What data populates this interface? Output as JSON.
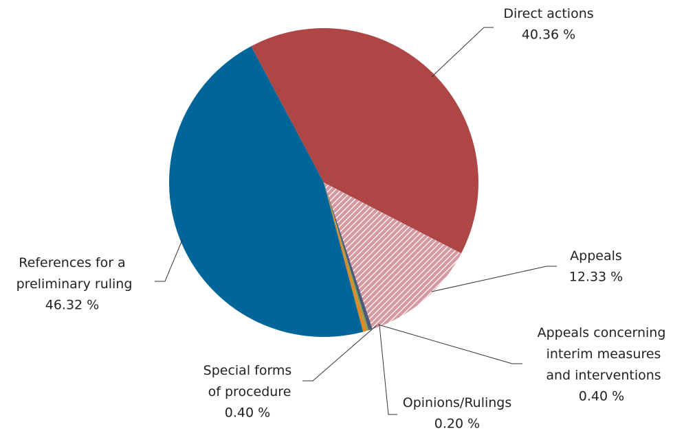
{
  "chart_data": {
    "type": "pie",
    "categories": [
      "Direct actions",
      "Appeals",
      "Appeals concerning interim measures and interventions",
      "Opinions/Rulings",
      "Special forms of procedure",
      "References for a preliminary ruling"
    ],
    "values": [
      40.36,
      12.33,
      0.4,
      0.2,
      0.4,
      46.32
    ],
    "value_labels": [
      "40.36 %",
      "12.33 %",
      "0.40 %",
      "0.20 %",
      "0.40 %",
      "46.32 %"
    ],
    "colors": [
      "#ad4645",
      "#d9a0a6",
      "#4a5b7a",
      "#8aa04a",
      "#e0892a",
      "#006699"
    ]
  }
}
